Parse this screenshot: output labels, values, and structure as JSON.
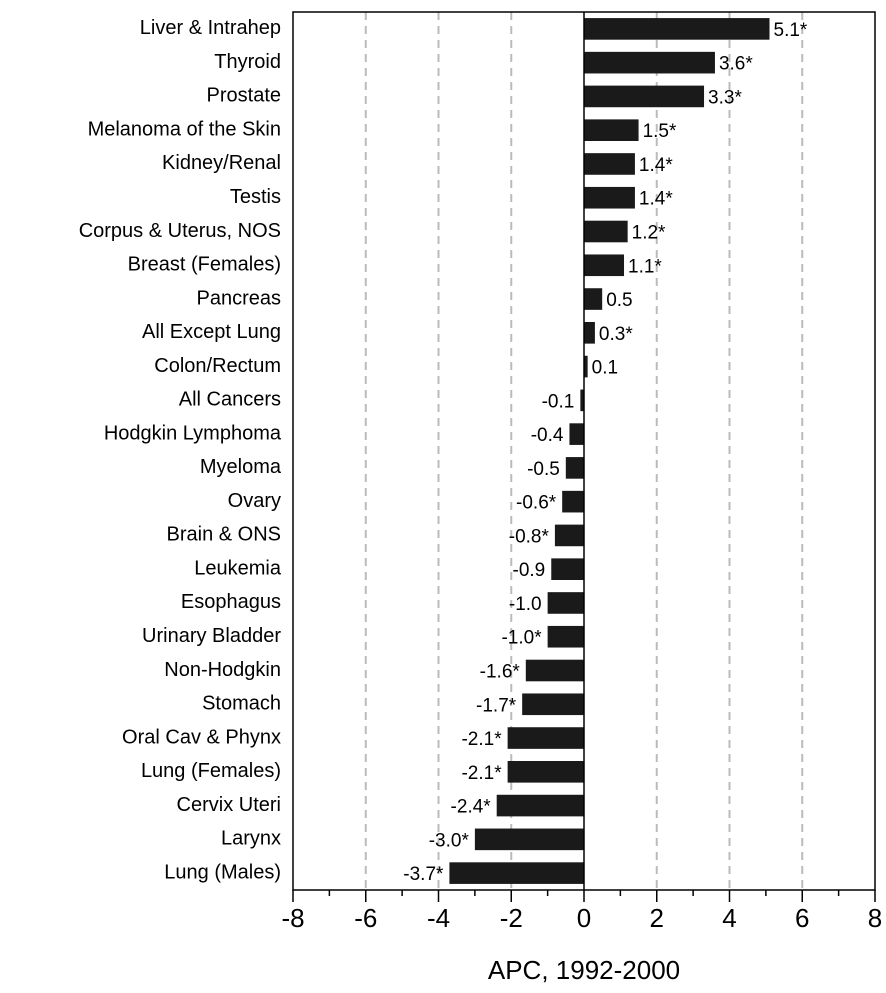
{
  "chart_data": {
    "type": "bar",
    "orientation": "horizontal",
    "xlabel": "APC, 1992-2000",
    "categories": [
      "Liver & Intrahep",
      "Thyroid",
      "Prostate",
      "Melanoma of the Skin",
      "Kidney/Renal",
      "Testis",
      "Corpus & Uterus, NOS",
      "Breast (Females)",
      "Pancreas",
      "All Except Lung",
      "Colon/Rectum",
      "All Cancers",
      "Hodgkin Lymphoma",
      "Myeloma",
      "Ovary",
      "Brain & ONS",
      "Leukemia",
      "Esophagus",
      "Urinary Bladder",
      "Non-Hodgkin",
      "Stomach",
      "Oral Cav & Phynx",
      "Lung (Females)",
      "Cervix Uteri",
      "Larynx",
      "Lung (Males)"
    ],
    "values": [
      5.1,
      3.6,
      3.3,
      1.5,
      1.4,
      1.4,
      1.2,
      1.1,
      0.5,
      0.3,
      0.1,
      -0.1,
      -0.4,
      -0.5,
      -0.6,
      -0.8,
      -0.9,
      -1.0,
      -1.0,
      -1.6,
      -1.7,
      -2.1,
      -2.1,
      -2.4,
      -3.0,
      -3.7
    ],
    "value_labels": [
      "5.1*",
      "3.6*",
      "3.3*",
      "1.5*",
      "1.4*",
      "1.4*",
      "1.2*",
      "1.1*",
      "0.5",
      "0.3*",
      "0.1",
      "-0.1",
      "-0.4",
      "-0.5",
      "-0.6*",
      "-0.8*",
      "-0.9",
      "-1.0",
      "-1.0*",
      "-1.6*",
      "-1.7*",
      "-2.1*",
      "-2.1*",
      "-2.4*",
      "-3.0*",
      "-3.7*"
    ],
    "color": "#1a1a1a",
    "xlim": [
      -8,
      8
    ],
    "xticks": [
      -8,
      -6,
      -4,
      -2,
      0,
      2,
      4,
      6,
      8
    ],
    "xminorticks": [
      -7,
      -5,
      -3,
      -1,
      1,
      3,
      5,
      7
    ],
    "grid": true
  }
}
